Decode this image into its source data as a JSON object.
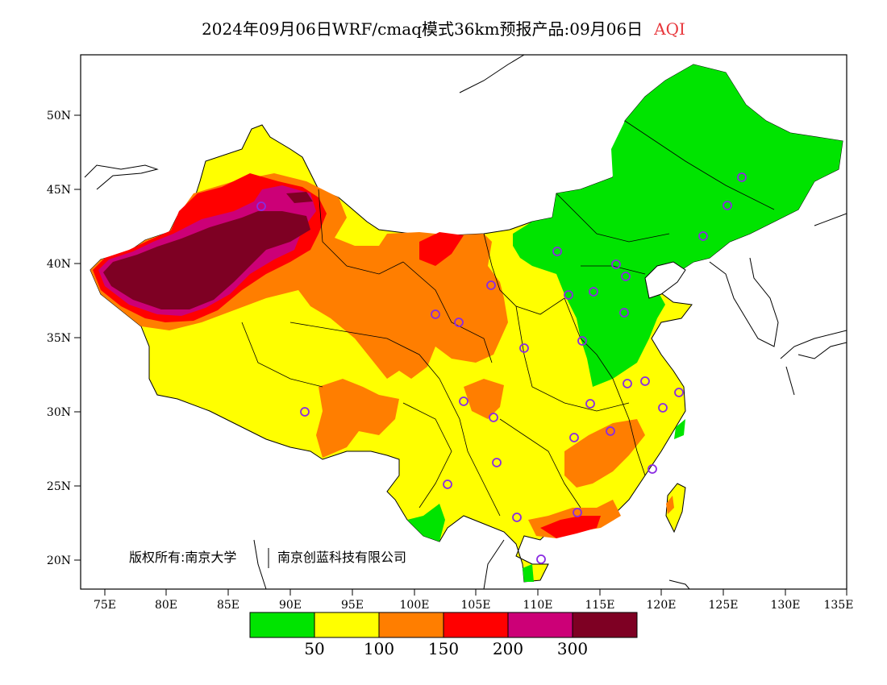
{
  "title": {
    "main": "2024年09月06日WRF/cmaq模式36km预报产品:09月06日",
    "variable": "AQI",
    "variable_color": "#e8383d"
  },
  "axes": {
    "x_ticks": [
      "75E",
      "80E",
      "85E",
      "90E",
      "95E",
      "100E",
      "105E",
      "110E",
      "115E",
      "120E",
      "125E",
      "130E",
      "135E"
    ],
    "y_ticks": [
      "50N",
      "45N",
      "40N",
      "35N",
      "30N",
      "25N",
      "20N"
    ]
  },
  "colorbar": {
    "colors": [
      "#00e400",
      "#ffff00",
      "#ff7e00",
      "#ff0000",
      "#cc0077",
      "#7e0023"
    ],
    "labels": [
      "50",
      "100",
      "150",
      "200",
      "300"
    ]
  },
  "copyright": {
    "left": "版权所有:南京大学",
    "right": "南京创蓝科技有限公司"
  }
}
